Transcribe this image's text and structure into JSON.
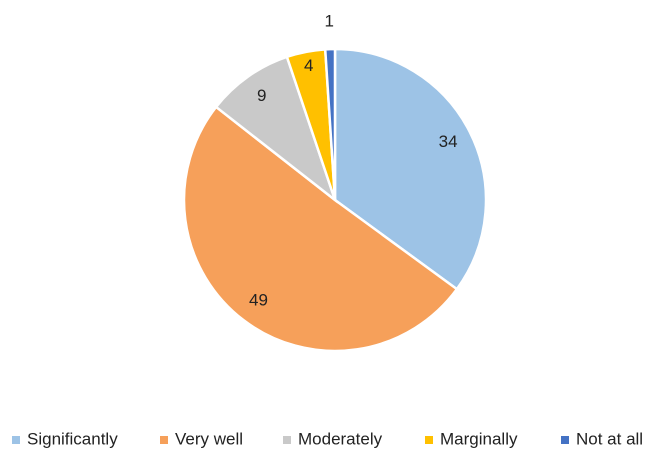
{
  "chart_data": {
    "type": "pie",
    "categories": [
      "Significantly",
      "Very well",
      "Moderately",
      "Marginally",
      "Not at all"
    ],
    "values": [
      34,
      49,
      9,
      4,
      1
    ],
    "colors": [
      "#9dc3e6",
      "#f6a05a",
      "#c9c9c9",
      "#ffc000",
      "#4472c4"
    ],
    "legend": "bottom"
  }
}
